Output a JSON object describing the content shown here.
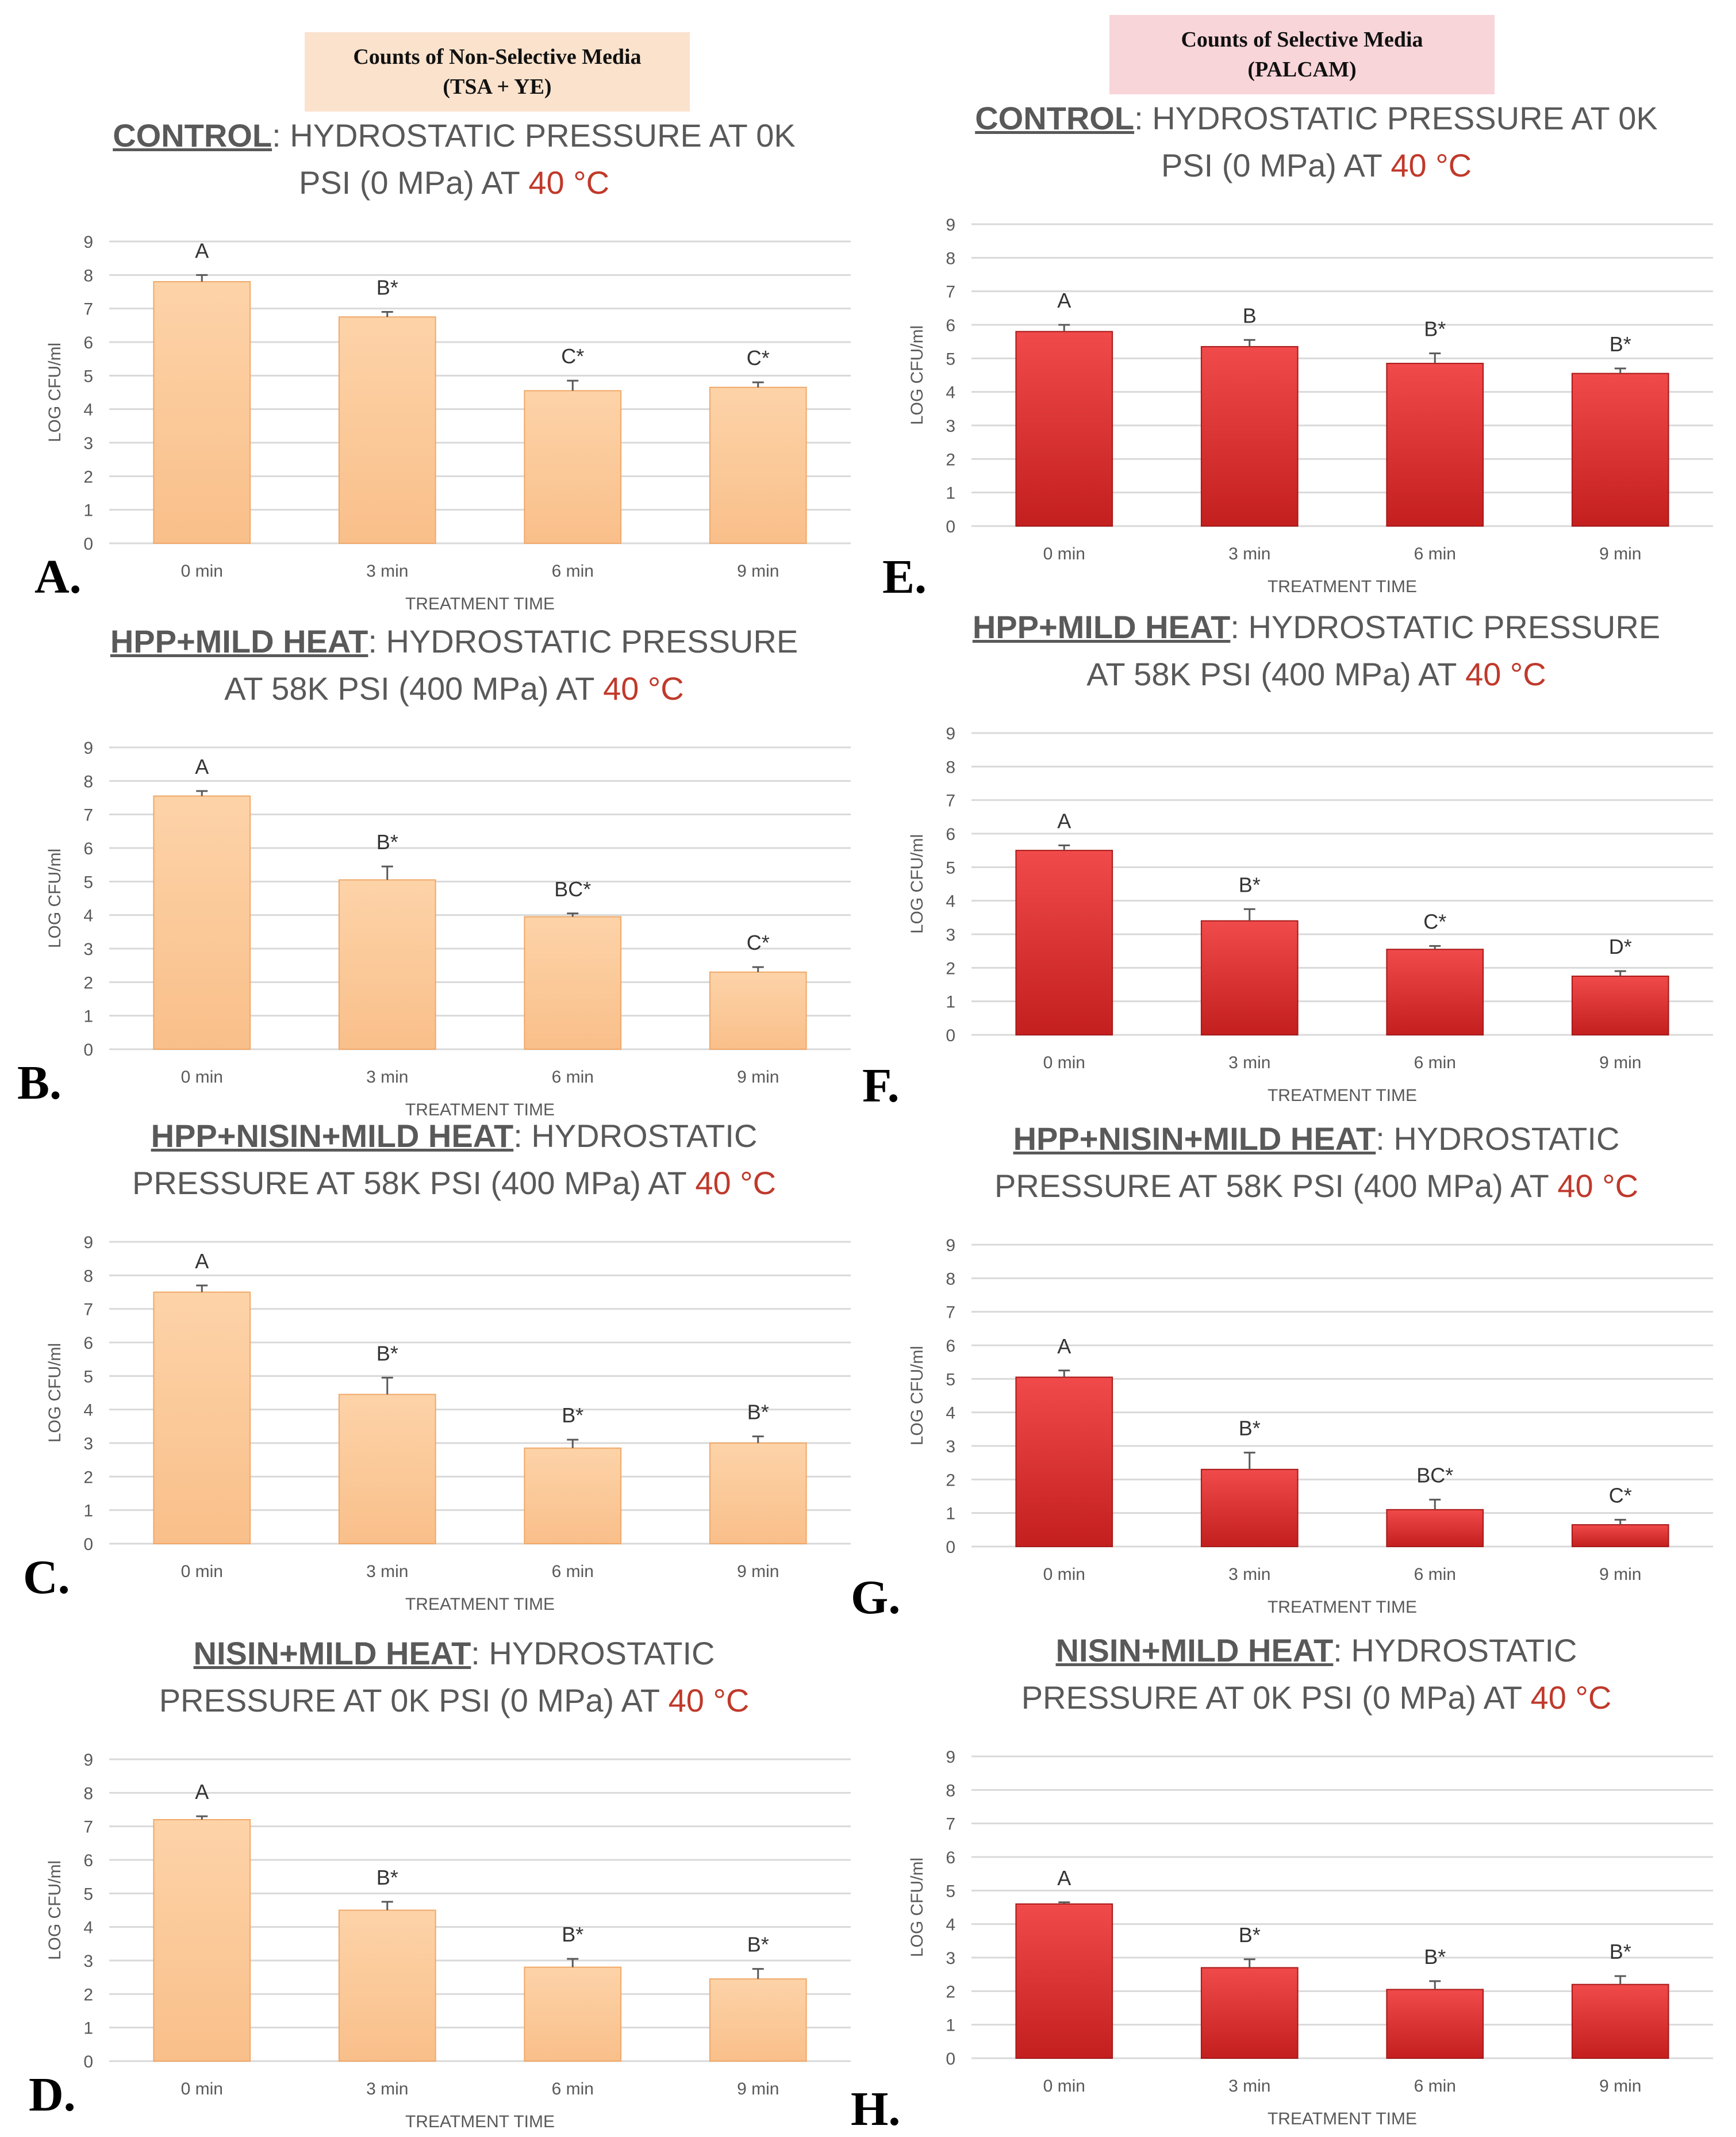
{
  "headers": {
    "left": {
      "line1": "Counts of Non-Selective Media",
      "line2": "(TSA + YE)"
    },
    "right": {
      "line1": "Counts of Selective Media",
      "line2": "(PALCAM)"
    }
  },
  "chart_data": [
    {
      "id": "A",
      "panel_letter": "A.",
      "type": "bar",
      "title_name": "CONTROL",
      "title_sep": ": ",
      "title_line1_rest": "HYDROSTATIC PRESSURE AT 0K",
      "title_line2_pre": "PSI (0 MPa) AT ",
      "title_temp": "40 °C",
      "categories": [
        "0 min",
        "3 min",
        "6 min",
        "9 min"
      ],
      "values": [
        7.8,
        6.75,
        4.55,
        4.65
      ],
      "errors": [
        0.2,
        0.15,
        0.3,
        0.15
      ],
      "labels": [
        "A",
        "B*",
        "C*",
        "C*"
      ],
      "ylim": [
        0,
        9
      ],
      "yticks": [
        "0",
        "1",
        "2",
        "3",
        "4",
        "5",
        "6",
        "7",
        "8",
        "9"
      ],
      "xlabel": "TREATMENT TIME",
      "ylabel": "LOG CFU/ml",
      "color": "#fbc99b"
    },
    {
      "id": "B",
      "panel_letter": "B.",
      "type": "bar",
      "title_name": "HPP+MILD HEAT",
      "title_sep": ": ",
      "title_line1_rest": "HYDROSTATIC PRESSURE",
      "title_line2_pre": "AT 58K PSI (400 MPa) AT ",
      "title_temp": "40 °C",
      "categories": [
        "0 min",
        "3 min",
        "6 min",
        "9 min"
      ],
      "values": [
        7.55,
        5.05,
        3.95,
        2.3
      ],
      "errors": [
        0.15,
        0.4,
        0.1,
        0.15
      ],
      "labels": [
        "A",
        "B*",
        "BC*",
        "C*"
      ],
      "ylim": [
        0,
        9
      ],
      "yticks": [
        "0",
        "1",
        "2",
        "3",
        "4",
        "5",
        "6",
        "7",
        "8",
        "9"
      ],
      "xlabel": "TREATMENT TIME",
      "ylabel": "LOG CFU/ml",
      "color": "#fbc99b"
    },
    {
      "id": "C",
      "panel_letter": "C.",
      "type": "bar",
      "title_name": "HPP+NISIN+MILD HEAT",
      "title_sep": ": ",
      "title_line1_rest": "HYDROSTATIC",
      "title_line2_pre": "PRESSURE AT 58K PSI (400 MPa) AT ",
      "title_temp": "40 °C",
      "categories": [
        "0 min",
        "3 min",
        "6 min",
        "9 min"
      ],
      "values": [
        7.5,
        4.45,
        2.85,
        3.0
      ],
      "errors": [
        0.2,
        0.5,
        0.25,
        0.2
      ],
      "labels": [
        "A",
        "B*",
        "B*",
        "B*"
      ],
      "ylim": [
        0,
        9
      ],
      "yticks": [
        "0",
        "1",
        "2",
        "3",
        "4",
        "5",
        "6",
        "7",
        "8",
        "9"
      ],
      "xlabel": "TREATMENT TIME",
      "ylabel": "LOG CFU/ml",
      "color": "#fbc99b"
    },
    {
      "id": "D",
      "panel_letter": "D.",
      "type": "bar",
      "title_name": "NISIN+MILD HEAT",
      "title_sep": ": ",
      "title_line1_rest": "HYDROSTATIC",
      "title_line2_pre": "PRESSURE AT 0K PSI (0 MPa) AT ",
      "title_temp": "40 °C",
      "categories": [
        "0 min",
        "3 min",
        "6 min",
        "9 min"
      ],
      "values": [
        7.2,
        4.5,
        2.8,
        2.45
      ],
      "errors": [
        0.1,
        0.25,
        0.25,
        0.3
      ],
      "labels": [
        "A",
        "B*",
        "B*",
        "B*"
      ],
      "ylim": [
        0,
        9
      ],
      "yticks": [
        "0",
        "1",
        "2",
        "3",
        "4",
        "5",
        "6",
        "7",
        "8",
        "9"
      ],
      "xlabel": "TREATMENT TIME",
      "ylabel": "LOG CFU/ml",
      "color": "#fbc99b"
    },
    {
      "id": "E",
      "panel_letter": "E.",
      "type": "bar",
      "title_name": "CONTROL",
      "title_sep": ": ",
      "title_line1_rest": "HYDROSTATIC PRESSURE AT 0K",
      "title_line2_pre": "PSI (0 MPa) AT ",
      "title_temp": "40 °C",
      "categories": [
        "0 min",
        "3 min",
        "6 min",
        "9 min"
      ],
      "values": [
        5.8,
        5.35,
        4.85,
        4.55
      ],
      "errors": [
        0.2,
        0.2,
        0.3,
        0.15
      ],
      "labels": [
        "A",
        "B",
        "B*",
        "B*"
      ],
      "ylim": [
        0,
        9
      ],
      "yticks": [
        "0",
        "1",
        "2",
        "3",
        "4",
        "5",
        "6",
        "7",
        "8",
        "9"
      ],
      "xlabel": "TREATMENT TIME",
      "ylabel": "LOG CFU/ml",
      "color": "#e03a3a"
    },
    {
      "id": "F",
      "panel_letter": "F.",
      "type": "bar",
      "title_name": "HPP+MILD HEAT",
      "title_sep": ": ",
      "title_line1_rest": "HYDROSTATIC PRESSURE",
      "title_line2_pre": "AT 58K PSI (400 MPa) AT ",
      "title_temp": "40 °C",
      "categories": [
        "0 min",
        "3 min",
        "6 min",
        "9 min"
      ],
      "values": [
        5.5,
        3.4,
        2.55,
        1.75
      ],
      "errors": [
        0.15,
        0.35,
        0.1,
        0.15
      ],
      "labels": [
        "A",
        "B*",
        "C*",
        "D*"
      ],
      "ylim": [
        0,
        9
      ],
      "yticks": [
        "0",
        "1",
        "2",
        "3",
        "4",
        "5",
        "6",
        "7",
        "8",
        "9"
      ],
      "xlabel": "TREATMENT TIME",
      "ylabel": "LOG CFU/ml",
      "color": "#e03a3a"
    },
    {
      "id": "G",
      "panel_letter": "G.",
      "type": "bar",
      "title_name": "HPP+NISIN+MILD HEAT",
      "title_sep": ": ",
      "title_line1_rest": "HYDROSTATIC",
      "title_line2_pre": "PRESSURE AT 58K PSI (400 MPa) AT ",
      "title_temp": "40 °C",
      "categories": [
        "0 min",
        "3 min",
        "6 min",
        "9 min"
      ],
      "values": [
        5.05,
        2.3,
        1.1,
        0.65
      ],
      "errors": [
        0.2,
        0.5,
        0.3,
        0.15
      ],
      "labels": [
        "A",
        "B*",
        "BC*",
        "C*"
      ],
      "ylim": [
        0,
        9
      ],
      "yticks": [
        "0",
        "1",
        "2",
        "3",
        "4",
        "5",
        "6",
        "7",
        "8",
        "9"
      ],
      "xlabel": "TREATMENT TIME",
      "ylabel": "LOG CFU/ml",
      "color": "#e03a3a"
    },
    {
      "id": "H",
      "panel_letter": "H.",
      "type": "bar",
      "title_name": "NISIN+MILD HEAT",
      "title_sep": ": ",
      "title_line1_rest": "HYDROSTATIC",
      "title_line2_pre": "PRESSURE AT 0K PSI (0 MPa) AT ",
      "title_temp": "40 °C",
      "categories": [
        "0 min",
        "3 min",
        "6 min",
        "9 min"
      ],
      "values": [
        4.6,
        2.7,
        2.05,
        2.2
      ],
      "errors": [
        0.05,
        0.25,
        0.25,
        0.25
      ],
      "labels": [
        "A",
        "B*",
        "B*",
        "B*"
      ],
      "ylim": [
        0,
        9
      ],
      "yticks": [
        "0",
        "1",
        "2",
        "3",
        "4",
        "5",
        "6",
        "7",
        "8",
        "9"
      ],
      "xlabel": "TREATMENT TIME",
      "ylabel": "LOG CFU/ml",
      "color": "#e03a3a"
    }
  ]
}
